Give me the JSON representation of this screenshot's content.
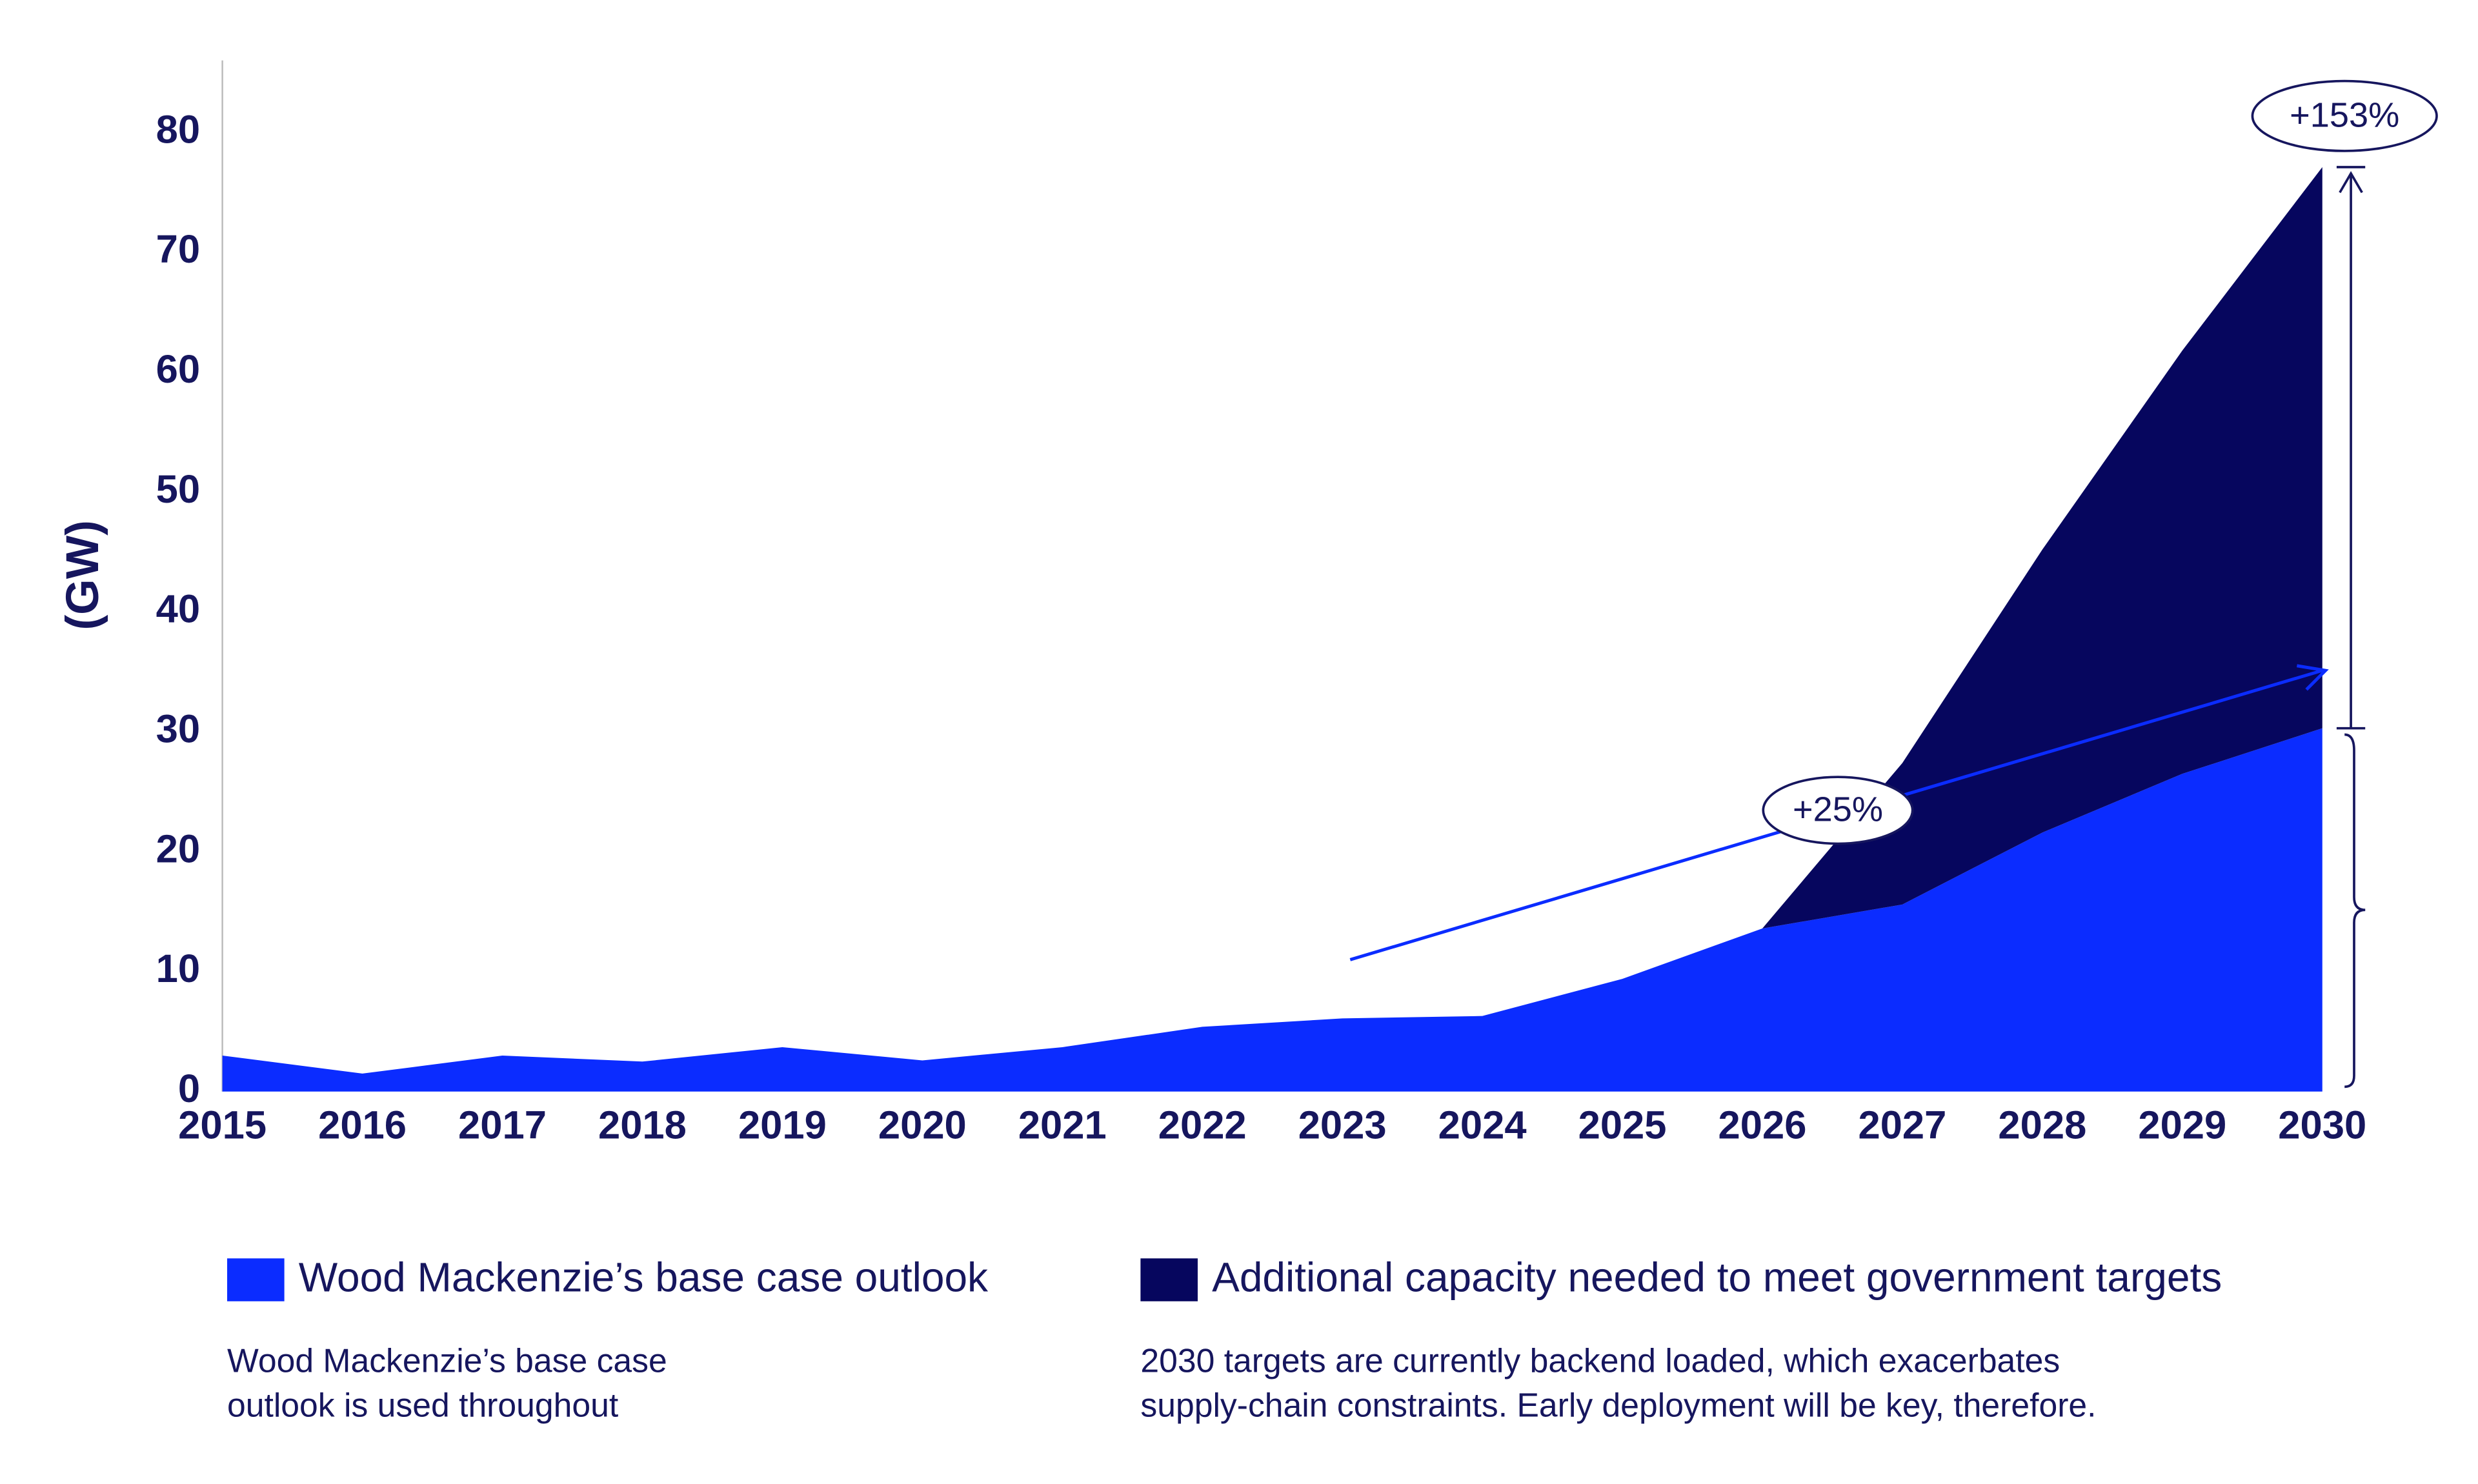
{
  "chart_data": {
    "type": "stacked-area",
    "y_label": "(GW)",
    "x": [
      2015,
      2016,
      2017,
      2018,
      2019,
      2020,
      2021,
      2022,
      2023,
      2024,
      2025,
      2026,
      2027,
      2028,
      2029,
      2030
    ],
    "xlim": [
      2015,
      2030
    ],
    "series": [
      {
        "name": "Wood Mackenzie’s base case outlook",
        "color": "#0b2cff",
        "values": [
          3.0,
          1.5,
          3.0,
          2.5,
          3.7,
          2.6,
          3.7,
          5.4,
          6.1,
          6.3,
          9.4,
          13.6,
          15.6,
          21.6,
          26.5,
          30.3
        ]
      },
      {
        "name": "Additional capacity needed to meet government targets",
        "color": "#06065e",
        "values": [
          null,
          null,
          null,
          null,
          null,
          null,
          null,
          null,
          null,
          null,
          null,
          0,
          11.8,
          23.6,
          35.3,
          46.8
        ]
      }
    ],
    "ylim": [
      0,
      86
    ],
    "yticks": [
      0,
      10,
      20,
      30,
      40,
      50,
      60,
      70,
      80
    ],
    "annotations": [
      "+153%",
      "+25%"
    ],
    "notes": [
      [
        "Wood Mackenzie’s base case",
        "outlook is used throughout"
      ],
      [
        "2030 targets are currently backend loaded, which exacerbates",
        "supply-chain constraints. Early deployment will be key, therefore."
      ]
    ]
  }
}
